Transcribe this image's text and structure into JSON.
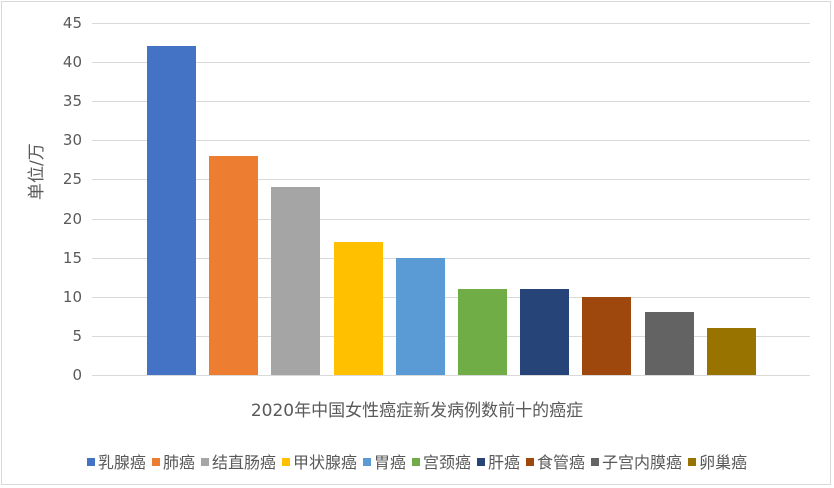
{
  "chart_data": {
    "type": "bar",
    "title": "",
    "xlabel": "2020年中国女性癌症新发病例数前十的癌症",
    "ylabel": "单位/万",
    "ylim": [
      0,
      45
    ],
    "yticks": [
      "0",
      "5",
      "10",
      "15",
      "20",
      "25",
      "30",
      "35",
      "40",
      "45"
    ],
    "grid": true,
    "legend_position": "bottom",
    "categories": [
      "乳腺癌",
      "肺癌",
      "结直肠癌",
      "甲状腺癌",
      "胃癌",
      "宫颈癌",
      "肝癌",
      "食管癌",
      "子宫内膜癌",
      "卵巢癌"
    ],
    "values": [
      42,
      28,
      24,
      17,
      15,
      11,
      11,
      10,
      8,
      6
    ],
    "colors": [
      "#4472c4",
      "#ed7d31",
      "#a5a5a5",
      "#ffc000",
      "#5b9bd5",
      "#70ad47",
      "#264478",
      "#9e480e",
      "#636363",
      "#997300"
    ],
    "series": [
      {
        "name": "乳腺癌",
        "values": [
          42
        ]
      },
      {
        "name": "肺癌",
        "values": [
          28
        ]
      },
      {
        "name": "结直肠癌",
        "values": [
          24
        ]
      },
      {
        "name": "甲状腺癌",
        "values": [
          17
        ]
      },
      {
        "name": "胃癌",
        "values": [
          15
        ]
      },
      {
        "name": "宫颈癌",
        "values": [
          11
        ]
      },
      {
        "name": "肝癌",
        "values": [
          11
        ]
      },
      {
        "name": "食管癌",
        "values": [
          10
        ]
      },
      {
        "name": "子宫内膜癌",
        "values": [
          8
        ]
      },
      {
        "name": "卵巢癌",
        "values": [
          6
        ]
      }
    ]
  }
}
